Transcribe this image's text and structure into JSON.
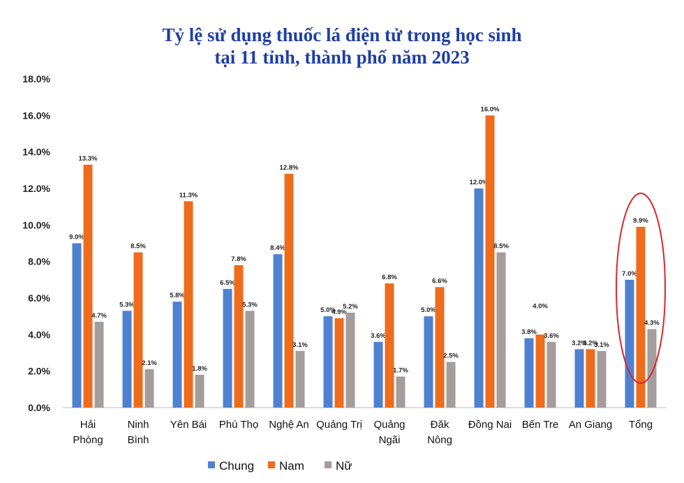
{
  "chart_data": {
    "type": "bar",
    "title_lines": [
      "Tỷ lệ sử dụng thuốc lá điện tử trong học sinh",
      "tại 11 tỉnh, thành phố năm 2023"
    ],
    "categories": [
      "Hải Phòng",
      "Ninh Bình",
      "Yên Bái",
      "Phú Thọ",
      "Nghệ An",
      "Quảng Trị",
      "Quảng Ngãi",
      "Đăk Nông",
      "Đồng Nai",
      "Bến Tre",
      "An Giang",
      "Tổng"
    ],
    "category_lines": [
      [
        "Hải",
        "Phòng"
      ],
      [
        "Ninh",
        "Bình"
      ],
      [
        "Yên Bái"
      ],
      [
        "Phú Thọ"
      ],
      [
        "Nghệ An"
      ],
      [
        "Quảng Trị"
      ],
      [
        "Quảng",
        "Ngãi"
      ],
      [
        "Đăk",
        "Nông"
      ],
      [
        "Đồng Nai"
      ],
      [
        "Bến Tre"
      ],
      [
        "An Giang"
      ],
      [
        "Tổng"
      ]
    ],
    "series": [
      {
        "name": "Chung",
        "color": "#4f81d1",
        "values": [
          9.0,
          5.3,
          5.8,
          6.5,
          8.4,
          5.0,
          3.6,
          5.0,
          12.0,
          3.8,
          3.2,
          7.0
        ]
      },
      {
        "name": "Nam",
        "color": "#ee6c1c",
        "values": [
          13.3,
          8.5,
          11.3,
          7.8,
          12.8,
          4.9,
          6.8,
          6.6,
          16.0,
          4.0,
          3.2,
          9.9
        ]
      },
      {
        "name": "Nữ",
        "color": "#a59c9c",
        "values": [
          4.7,
          2.1,
          1.8,
          5.3,
          3.1,
          5.2,
          1.7,
          2.5,
          8.5,
          3.6,
          3.1,
          4.3
        ]
      }
    ],
    "ylim": [
      0,
      18
    ],
    "yticks": [
      "0.0%",
      "2.0%",
      "4.0%",
      "6.0%",
      "8.0%",
      "10.0%",
      "12.0%",
      "14.0%",
      "16.0%",
      "18.0%"
    ],
    "value_format": "%",
    "grid": false,
    "legend": "bottom",
    "highlight": {
      "category": "Tổng",
      "shape": "ellipse",
      "color": "#d9262c"
    }
  }
}
